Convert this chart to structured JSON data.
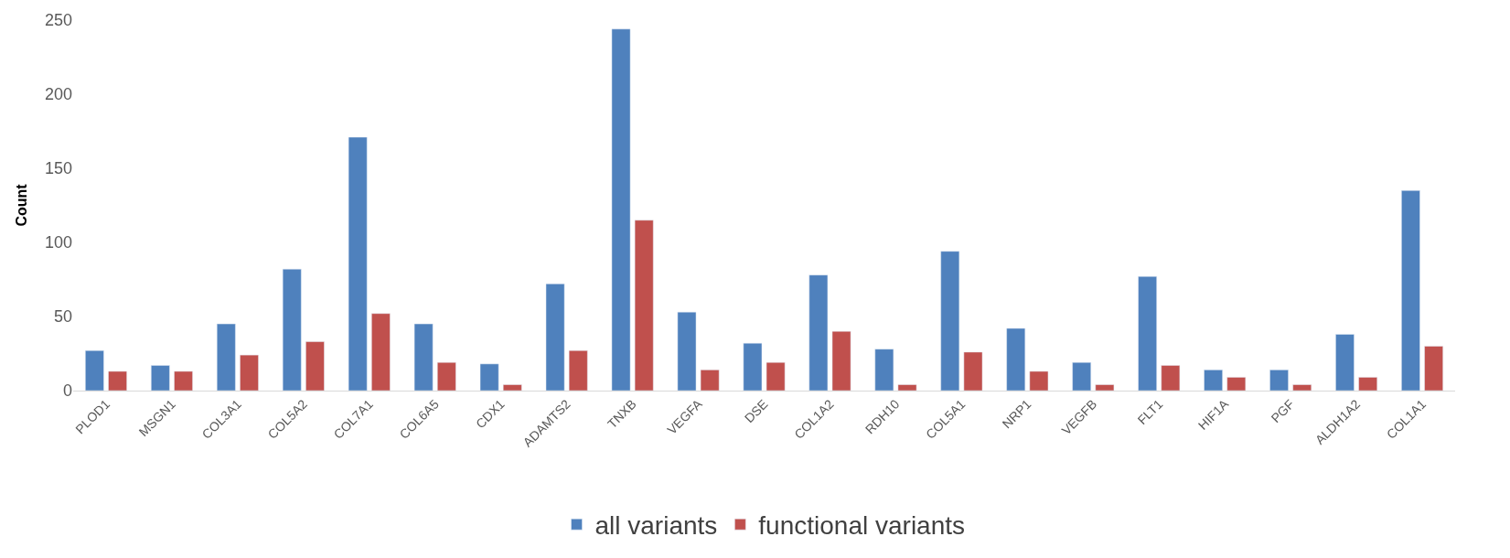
{
  "chart_data": {
    "type": "bar",
    "ylabel": "Count",
    "categories": [
      "PLOD1",
      "MSGN1",
      "COL3A1",
      "COL5A2",
      "COL7A1",
      "COL6A5",
      "CDX1",
      "ADAMTS2",
      "TNXB",
      "VEGFA",
      "DSE",
      "COL1A2",
      "RDH10",
      "COL5A1",
      "NRP1",
      "VEGFB",
      "FLT1",
      "HIF1A",
      "PGF",
      "ALDH1A2",
      "COL1A1"
    ],
    "series": [
      {
        "name": "all variants",
        "color": "#4f81bd",
        "values": [
          27,
          17,
          45,
          82,
          171,
          45,
          18,
          72,
          244,
          53,
          32,
          78,
          28,
          94,
          42,
          19,
          77,
          14,
          14,
          38,
          135
        ]
      },
      {
        "name": "functional variants",
        "color": "#c0504d",
        "values": [
          13,
          13,
          24,
          33,
          52,
          19,
          4,
          27,
          115,
          14,
          19,
          40,
          4,
          26,
          13,
          4,
          17,
          9,
          4,
          9,
          30
        ]
      }
    ],
    "ylim": [
      0,
      250
    ],
    "yticks": [
      0,
      50,
      100,
      150,
      200,
      250
    ],
    "legend": "bottom"
  }
}
